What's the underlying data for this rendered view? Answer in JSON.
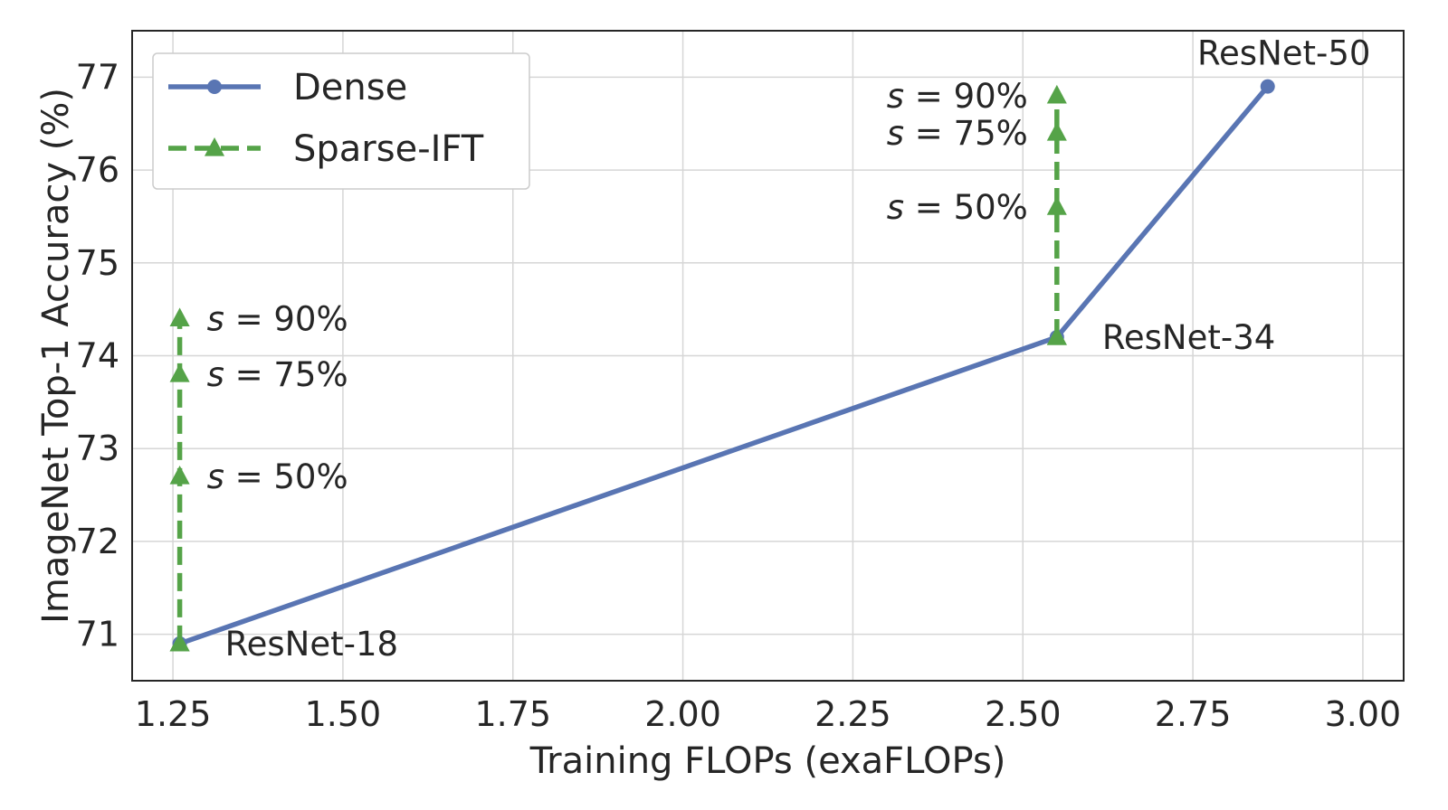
{
  "chart_data": {
    "type": "line",
    "title": "",
    "xlabel": "Training FLOPs (exaFLOPs)",
    "ylabel": "ImageNet Top-1 Accuracy (%)",
    "xlim": [
      1.19,
      3.06
    ],
    "ylim": [
      70.5,
      77.5
    ],
    "xticks": [
      1.25,
      1.5,
      1.75,
      2.0,
      2.25,
      2.5,
      2.75,
      3.0
    ],
    "xtick_labels": [
      "1.25",
      "1.50",
      "1.75",
      "2.00",
      "2.25",
      "2.50",
      "2.75",
      "3.00"
    ],
    "yticks": [
      71,
      72,
      73,
      74,
      75,
      76,
      77
    ],
    "ytick_labels": [
      "71",
      "72",
      "73",
      "74",
      "75",
      "76",
      "77"
    ],
    "grid": true,
    "legend_position": "top-left",
    "series": [
      {
        "name": "Dense",
        "color": "#5975b3",
        "style": "solid",
        "marker": "circle",
        "points": [
          {
            "x": 1.26,
            "y": 70.9,
            "label": "ResNet-18"
          },
          {
            "x": 2.55,
            "y": 74.2,
            "label": "ResNet-34"
          },
          {
            "x": 2.86,
            "y": 76.9,
            "label": "ResNet-50"
          }
        ]
      },
      {
        "name": "Sparse-IFT",
        "color": "#55a348",
        "style": "dashed",
        "marker": "triangle",
        "groups": [
          {
            "points": [
              {
                "x": 1.26,
                "y": 70.9,
                "label": ""
              },
              {
                "x": 1.26,
                "y": 72.7,
                "label": "s = 50%"
              },
              {
                "x": 1.26,
                "y": 73.8,
                "label": "s = 75%"
              },
              {
                "x": 1.26,
                "y": 74.4,
                "label": "s = 90%"
              }
            ]
          },
          {
            "points": [
              {
                "x": 2.55,
                "y": 74.2,
                "label": ""
              },
              {
                "x": 2.55,
                "y": 75.6,
                "label": "s = 50%"
              },
              {
                "x": 2.55,
                "y": 76.4,
                "label": "s = 75%"
              },
              {
                "x": 2.55,
                "y": 76.8,
                "label": "s = 90%"
              }
            ]
          }
        ]
      }
    ]
  }
}
